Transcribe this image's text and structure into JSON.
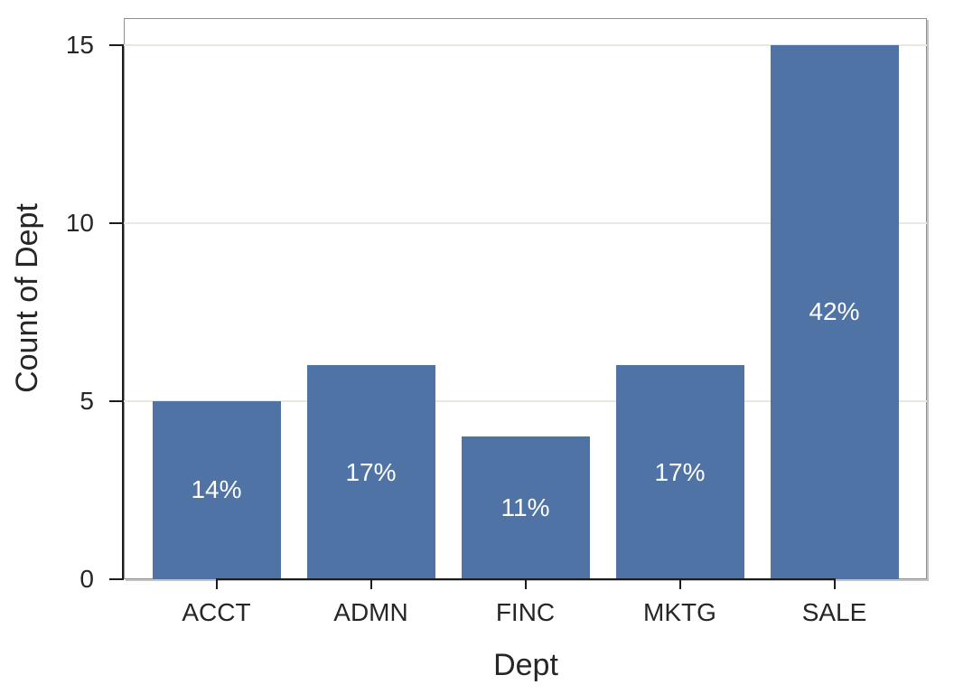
{
  "colors": {
    "bar": "#4e73a4",
    "bar_label": "#ffffff",
    "grid": "#e9e7e0",
    "frame": "#8f8f8f",
    "spine": "#1c1c1c",
    "text": "#262626",
    "background": "#ffffff"
  },
  "chart_data": {
    "type": "bar",
    "title": "",
    "xlabel": "Dept",
    "ylabel": "Count of Dept",
    "categories": [
      "ACCT",
      "ADMN",
      "FINC",
      "MKTG",
      "SALE"
    ],
    "values": [
      5,
      6,
      4,
      6,
      15
    ],
    "bar_labels": [
      "14%",
      "17%",
      "11%",
      "17%",
      "42%"
    ],
    "yticks": [
      0,
      5,
      10,
      15
    ],
    "ylim": [
      0,
      15.75
    ],
    "grid": "horizontal-only",
    "legend": "none"
  }
}
